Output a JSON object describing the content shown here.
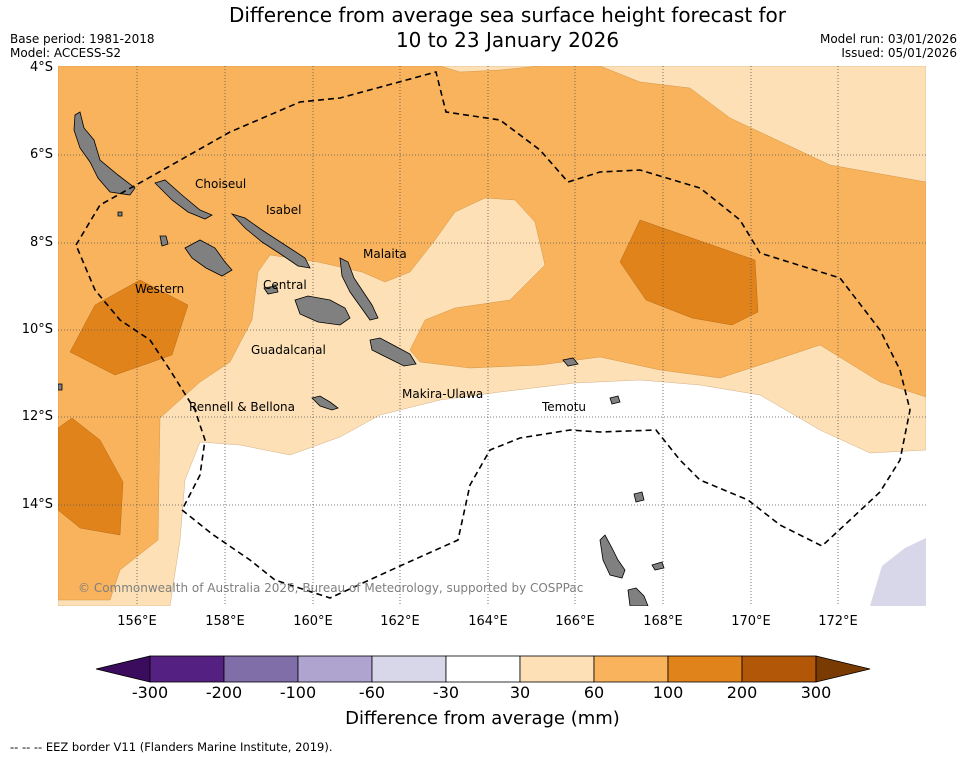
{
  "title_line1": "Difference from average sea surface height forecast for",
  "title_line2": "10 to 23 January 2026",
  "base_period": "Base period: 1981-2018",
  "model": "Model: ACCESS-S2",
  "model_run": "Model run: 03/01/2026",
  "issued": "Issued: 05/01/2026",
  "lat_labels": [
    "4°S",
    "6°S",
    "8°S",
    "10°S",
    "12°S",
    "14°S"
  ],
  "lon_labels": [
    "156°E",
    "158°E",
    "160°E",
    "162°E",
    "164°E",
    "166°E",
    "168°E",
    "170°E",
    "172°E"
  ],
  "place_labels": {
    "choiseul": "Choiseul",
    "isabel": "Isabel",
    "malaita": "Malaita",
    "western": "Western",
    "central": "Central",
    "guadalcanal": "Guadalcanal",
    "makira": "Makira-Ulawa",
    "rennell": "Rennell & Bellona",
    "temotu": "Temotu"
  },
  "copyright": "© Commonwealth of Australia 2026, Bureau of Meteorology, supported by COSPPac",
  "colorbar": {
    "ticks": [
      "-300",
      "-200",
      "-100",
      "-60",
      "-30",
      "30",
      "60",
      "100",
      "200",
      "300"
    ],
    "colors": [
      "#3b0c5e",
      "#542081",
      "#7f6ea8",
      "#aea4cf",
      "#d7d7e9",
      "#ffffff",
      "#fde0b5",
      "#f9b35d",
      "#e0831a",
      "#b15707",
      "#7a3b02"
    ],
    "title": "Difference from average (mm)"
  },
  "footer": "--  --  -- EEZ border V11 (Flanders Marine Institute, 2019)."
}
